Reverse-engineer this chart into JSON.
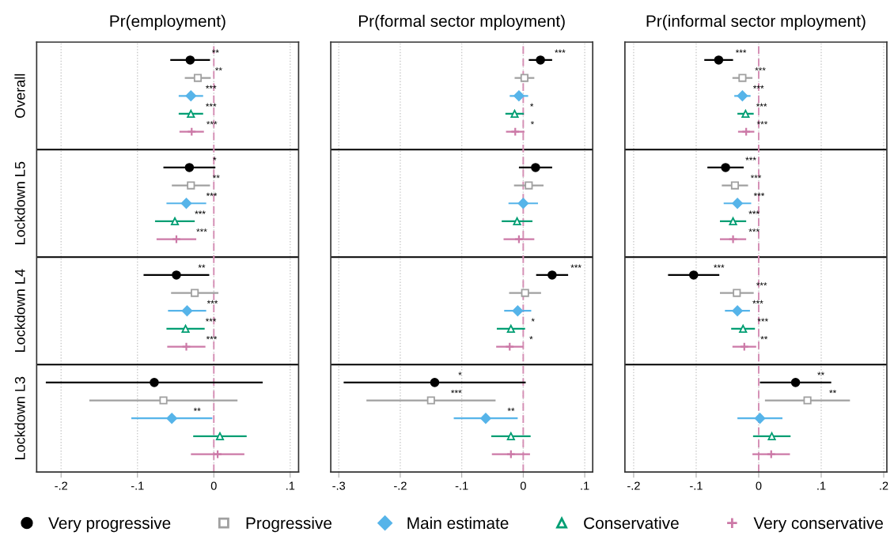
{
  "chart_data": [
    {
      "type": "scatter",
      "orientation": "horizontal",
      "title": "Pr(employment)",
      "categories": [
        "Overall",
        "Lockdown L5",
        "Lockdown L4",
        "Lockdown L3"
      ],
      "xlim": [
        -0.232,
        0.111
      ],
      "xticks": [
        {
          "value": -0.2,
          "label": "-.2"
        },
        {
          "value": -0.1,
          "label": "-.1"
        },
        0,
        {
          "value": 0.1,
          "label": ".1"
        }
      ],
      "grid": "x",
      "legend": "bottom",
      "ref_lines": [
        {
          "axis": "x",
          "value": 0,
          "color": "#d58fb5",
          "line_style": "dashed"
        }
      ],
      "series": [
        {
          "name": "Very progressive",
          "color": "#000000",
          "marker": "circle",
          "values": [
            -0.031,
            -0.032,
            -0.049,
            -0.078
          ],
          "errors": [
            0.026,
            0.034,
            0.043,
            0.142
          ],
          "value_labels": [
            "**",
            "*",
            "**",
            null
          ]
        },
        {
          "name": "Progressive",
          "color": "#a0a0a0",
          "marker": "square",
          "values": [
            -0.021,
            -0.03,
            -0.025,
            -0.066
          ],
          "errors": [
            0.017,
            0.025,
            0.031,
            0.097
          ],
          "value_labels": [
            "**",
            "**",
            null,
            null
          ]
        },
        {
          "name": "Main estimate",
          "color": "#56b4e9",
          "marker": "diamond",
          "values": [
            -0.03,
            -0.036,
            -0.035,
            -0.055
          ],
          "errors": [
            0.016,
            0.026,
            0.025,
            0.053
          ],
          "value_labels": [
            "***",
            "***",
            "***",
            "**"
          ]
        },
        {
          "name": "Conservative",
          "color": "#009e73",
          "marker": "triangle",
          "values": [
            -0.03,
            -0.051,
            -0.037,
            0.008
          ],
          "errors": [
            0.016,
            0.026,
            0.025,
            0.035
          ],
          "value_labels": [
            "***",
            "***",
            "***",
            null
          ]
        },
        {
          "name": "Very conservative",
          "color": "#cc79a7",
          "marker": "cross",
          "values": [
            -0.029,
            -0.049,
            -0.036,
            0.005
          ],
          "errors": [
            0.016,
            0.026,
            0.025,
            0.035
          ],
          "value_labels": [
            "***",
            "***",
            "***",
            null
          ]
        }
      ]
    },
    {
      "type": "scatter",
      "orientation": "horizontal",
      "title": "Pr(formal sector mployment)",
      "categories": [
        null,
        null,
        null,
        null
      ],
      "tick_labels": "x",
      "xlim": [
        -0.313,
        0.113
      ],
      "xticks": [
        {
          "value": -0.3,
          "label": "-.3"
        },
        {
          "value": -0.2,
          "label": "-.2"
        },
        {
          "value": -0.1,
          "label": "-.1"
        },
        0,
        {
          "value": 0.1,
          "label": ".1"
        }
      ],
      "grid": "x",
      "ref_lines": [
        {
          "axis": "x",
          "value": 0,
          "color": "#d58fb5",
          "line_style": "dashed"
        }
      ],
      "series": [
        {
          "color": "#000000",
          "marker": "circle",
          "values": [
            0.028,
            0.02,
            0.047,
            -0.144
          ],
          "errors": [
            0.019,
            0.027,
            0.026,
            0.148
          ],
          "value_labels": [
            "***",
            null,
            "***",
            "*"
          ]
        },
        {
          "color": "#a0a0a0",
          "marker": "square",
          "values": [
            0.002,
            0.009,
            0.003,
            -0.15
          ],
          "errors": [
            0.016,
            0.024,
            0.026,
            0.105
          ],
          "value_labels": [
            null,
            null,
            null,
            "***"
          ]
        },
        {
          "color": "#56b4e9",
          "marker": "diamond",
          "values": [
            -0.007,
            0.0,
            -0.009,
            -0.061
          ],
          "errors": [
            0.015,
            0.024,
            0.022,
            0.052
          ],
          "value_labels": [
            null,
            null,
            null,
            "**"
          ]
        },
        {
          "color": "#009e73",
          "marker": "triangle",
          "values": [
            -0.014,
            -0.01,
            -0.02,
            -0.02
          ],
          "errors": [
            0.015,
            0.025,
            0.023,
            0.032
          ],
          "value_labels": [
            "*",
            null,
            "*",
            null
          ]
        },
        {
          "color": "#cc79a7",
          "marker": "cross",
          "values": [
            -0.013,
            -0.007,
            -0.022,
            -0.02
          ],
          "errors": [
            0.015,
            0.025,
            0.022,
            0.031
          ],
          "value_labels": [
            "*",
            null,
            "*",
            null
          ]
        }
      ]
    },
    {
      "type": "scatter",
      "orientation": "horizontal",
      "title": "Pr(informal sector mployment)",
      "categories": [
        null,
        null,
        null,
        null
      ],
      "tick_labels": "x",
      "xlim": [
        -0.214,
        0.205
      ],
      "xticks": [
        {
          "value": -0.2,
          "label": "-.2"
        },
        {
          "value": -0.1,
          "label": "-.1"
        },
        0,
        {
          "value": 0.1,
          "label": ".1"
        },
        {
          "value": 0.2,
          "label": ".2"
        }
      ],
      "grid": "x",
      "ref_lines": [
        {
          "axis": "x",
          "value": 0,
          "color": "#d58fb5",
          "line_style": "dashed"
        }
      ],
      "series": [
        {
          "color": "#000000",
          "marker": "circle",
          "values": [
            -0.064,
            -0.053,
            -0.104,
            0.059
          ],
          "errors": [
            0.023,
            0.029,
            0.041,
            0.057
          ],
          "value_labels": [
            "***",
            "***",
            "***",
            "**"
          ]
        },
        {
          "color": "#a0a0a0",
          "marker": "square",
          "values": [
            -0.026,
            -0.038,
            -0.035,
            0.078
          ],
          "errors": [
            0.016,
            0.021,
            0.027,
            0.068
          ],
          "value_labels": [
            "***",
            "***",
            "***",
            "**"
          ]
        },
        {
          "color": "#56b4e9",
          "marker": "diamond",
          "values": [
            -0.026,
            -0.034,
            -0.034,
            0.002
          ],
          "errors": [
            0.013,
            0.022,
            0.02,
            0.036
          ],
          "value_labels": [
            "***",
            "***",
            "***",
            null
          ]
        },
        {
          "color": "#009e73",
          "marker": "triangle",
          "values": [
            -0.021,
            -0.041,
            -0.025,
            0.021
          ],
          "errors": [
            0.013,
            0.021,
            0.019,
            0.03
          ],
          "value_labels": [
            "***",
            "***",
            "***",
            null
          ]
        },
        {
          "color": "#cc79a7",
          "marker": "cross",
          "values": [
            -0.02,
            -0.041,
            -0.023,
            0.02
          ],
          "errors": [
            0.013,
            0.021,
            0.019,
            0.03
          ],
          "value_labels": [
            "***",
            "***",
            "**",
            null
          ]
        }
      ]
    }
  ]
}
